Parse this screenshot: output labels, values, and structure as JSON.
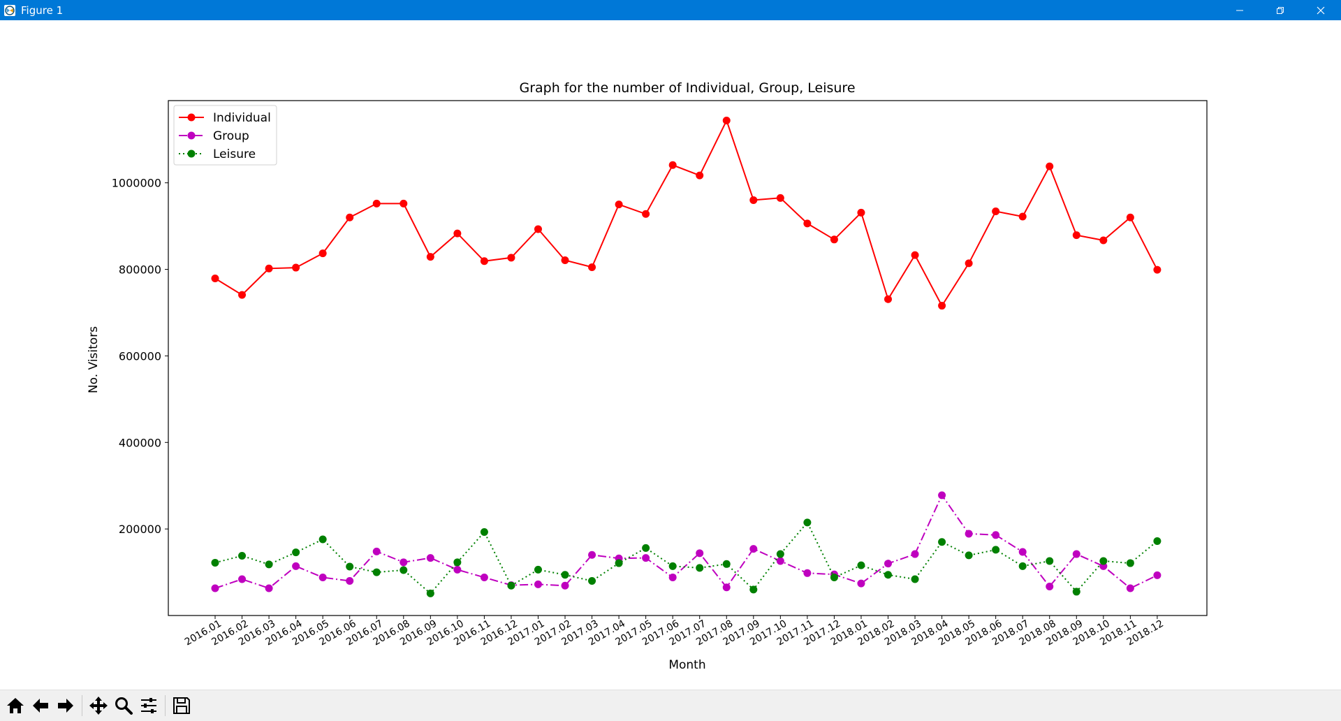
{
  "window": {
    "title": "Figure 1",
    "icon": "matplotlib-figure-icon",
    "controls": [
      "minimize-icon",
      "restore-icon",
      "close-icon"
    ]
  },
  "toolbar": {
    "buttons": [
      "home-icon",
      "back-arrow-icon",
      "forward-arrow-icon",
      "pan-icon",
      "zoom-icon",
      "configure-subplots-icon",
      "save-icon"
    ]
  },
  "colors": {
    "titlebar": "#0078d7",
    "individual": "#ff0000",
    "group": "#bf00bf",
    "leisure": "#008000"
  },
  "chart_data": {
    "type": "line",
    "title": "Graph for the number of Individual, Group, Leisure",
    "xlabel": "Month",
    "ylabel": "No. Visitors",
    "ylim": [
      0,
      1190000
    ],
    "yticks": [
      200000,
      400000,
      600000,
      800000,
      1000000
    ],
    "grid": false,
    "legend_position": "upper left",
    "x": [
      "2016.01",
      "2016.02",
      "2016.03",
      "2016.04",
      "2016.05",
      "2016.06",
      "2016.07",
      "2016.08",
      "2016.09",
      "2016.10",
      "2016.11",
      "2016.12",
      "2017.01",
      "2017.02",
      "2017.03",
      "2017.04",
      "2017.05",
      "2017.06",
      "2017.07",
      "2017.08",
      "2017.09",
      "2017.10",
      "2017.11",
      "2017.12",
      "2018.01",
      "2018.02",
      "2018.03",
      "2018.04",
      "2018.05",
      "2018.06",
      "2018.07",
      "2018.08",
      "2018.09",
      "2018.10",
      "2018.11",
      "2018.12"
    ],
    "series": [
      {
        "name": "Individual",
        "color": "#ff0000",
        "linestyle": "solid",
        "marker": "circle",
        "values": [
          779000,
          741000,
          802000,
          804000,
          837000,
          920000,
          952000,
          952000,
          829000,
          883000,
          819000,
          827000,
          893000,
          821000,
          805000,
          950000,
          928000,
          1041000,
          1017000,
          1144000,
          960000,
          965000,
          906000,
          869000,
          931000,
          731000,
          833000,
          716000,
          814000,
          934000,
          922000,
          1038000,
          879000,
          867000,
          920000,
          799000
        ]
      },
      {
        "name": "Group",
        "color": "#bf00bf",
        "linestyle": "dashdot",
        "marker": "circle",
        "values": [
          63000,
          84000,
          63000,
          114000,
          88000,
          80000,
          148000,
          123000,
          133000,
          106000,
          88000,
          70000,
          72000,
          69000,
          140000,
          132000,
          133000,
          88000,
          144000,
          65000,
          154000,
          126000,
          98000,
          95000,
          74000,
          120000,
          142000,
          278000,
          189000,
          186000,
          147000,
          67000,
          142000,
          114000,
          63000,
          93000
        ]
      },
      {
        "name": "Leisure",
        "color": "#008000",
        "linestyle": "dotted",
        "marker": "circle",
        "values": [
          122000,
          138000,
          118000,
          146000,
          176000,
          113000,
          100000,
          105000,
          51000,
          123000,
          193000,
          69000,
          106000,
          94000,
          80000,
          121000,
          156000,
          114000,
          110000,
          119000,
          60000,
          142000,
          215000,
          88000,
          116000,
          94000,
          84000,
          170000,
          139000,
          152000,
          114000,
          126000,
          55000,
          126000,
          121000,
          172000
        ]
      }
    ]
  }
}
